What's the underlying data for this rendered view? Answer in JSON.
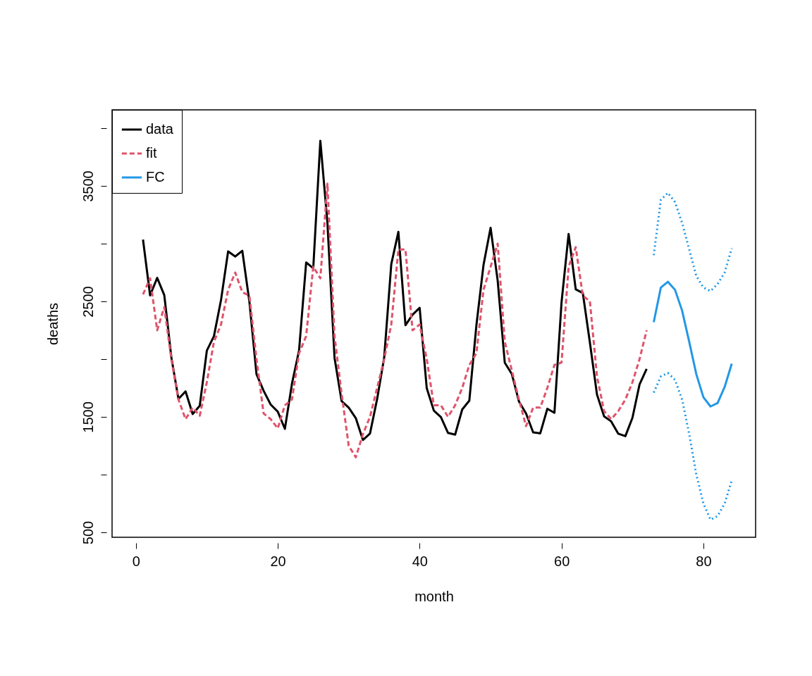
{
  "chart_data": {
    "type": "line",
    "xlabel": "month",
    "ylabel": "deaths",
    "xlim": [
      -3.36,
      87.36
    ],
    "ylim": [
      457,
      4159
    ],
    "xticks": [
      0,
      20,
      40,
      60,
      80
    ],
    "yticks": [
      500,
      {
        "value": 1000,
        "label": null
      },
      1500,
      {
        "value": 2000,
        "label": null
      },
      2500,
      {
        "value": 3000,
        "label": null
      },
      3500,
      {
        "value": 4000,
        "label": null
      }
    ],
    "grid": false,
    "legend": "top left",
    "series": [
      {
        "name": "data",
        "color": "#000000",
        "line_style": "solid",
        "x": [
          1,
          2,
          3,
          4,
          5,
          6,
          7,
          8,
          9,
          10,
          11,
          12,
          13,
          14,
          15,
          16,
          17,
          18,
          19,
          20,
          21,
          22,
          23,
          24,
          25,
          26,
          27,
          28,
          29,
          30,
          31,
          32,
          33,
          34,
          35,
          36,
          37,
          38,
          39,
          40,
          41,
          42,
          43,
          44,
          45,
          46,
          47,
          48,
          49,
          50,
          51,
          52,
          53,
          54,
          55,
          56,
          57,
          58,
          59,
          60,
          61,
          62,
          63,
          64,
          65,
          66,
          67,
          68,
          69,
          70,
          71,
          72
        ],
        "values": [
          3035,
          2552,
          2704,
          2554,
          2014,
          1655,
          1721,
          1524,
          1596,
          2074,
          2199,
          2512,
          2933,
          2889,
          2938,
          2497,
          1870,
          1726,
          1607,
          1545,
          1396,
          1787,
          2076,
          2837,
          2787,
          3891,
          3179,
          2011,
          1636,
          1580,
          1489,
          1300,
          1356,
          1653,
          2013,
          2823,
          3102,
          2294,
          2385,
          2444,
          1748,
          1554,
          1498,
          1361,
          1346,
          1564,
          1640,
          2293,
          2815,
          3137,
          2679,
          1969,
          1870,
          1633,
          1529,
          1366,
          1357,
          1570,
          1535,
          2491,
          3084,
          2605,
          2573,
          2143,
          1693,
          1504,
          1461,
          1354,
          1333,
          1492,
          1781,
          1915
        ]
      },
      {
        "name": "fit",
        "color": "#df536b",
        "line_style": "dashed",
        "x": [
          1,
          2,
          3,
          4,
          5,
          6,
          7,
          8,
          9,
          10,
          11,
          12,
          13,
          14,
          15,
          16,
          17,
          18,
          19,
          20,
          21,
          22,
          23,
          24,
          25,
          26,
          27,
          28,
          29,
          30,
          31,
          32,
          33,
          34,
          35,
          36,
          37,
          38,
          39,
          40,
          41,
          42,
          43,
          44,
          45,
          46,
          47,
          48,
          49,
          50,
          51,
          52,
          53,
          54,
          55,
          56,
          57,
          58,
          59,
          60,
          61,
          62,
          63,
          64,
          65,
          66,
          67,
          68,
          69,
          70,
          71,
          72
        ],
        "values": [
          2560,
          2700,
          2250,
          2450,
          2000,
          1650,
          1480,
          1580,
          1510,
          1800,
          2150,
          2300,
          2600,
          2750,
          2580,
          2550,
          2000,
          1530,
          1480,
          1400,
          1600,
          1650,
          2050,
          2200,
          2800,
          2700,
          3520,
          2200,
          1700,
          1250,
          1150,
          1350,
          1500,
          1750,
          2000,
          2300,
          2950,
          2950,
          2250,
          2300,
          2000,
          1600,
          1600,
          1500,
          1600,
          1750,
          1950,
          2050,
          2600,
          2800,
          3000,
          2150,
          1900,
          1650,
          1420,
          1580,
          1580,
          1750,
          1950,
          1970,
          2800,
          2970,
          2550,
          2500,
          1850,
          1550,
          1480,
          1550,
          1650,
          1800,
          2000,
          2250
        ]
      },
      {
        "name": "FC",
        "color": "#2297e6",
        "line_style": "solid",
        "x": [
          73,
          74,
          75,
          76,
          77,
          78,
          79,
          80,
          81,
          82,
          83,
          84
        ],
        "values": [
          2320,
          2620,
          2670,
          2600,
          2420,
          2150,
          1870,
          1670,
          1590,
          1620,
          1760,
          1960
        ]
      },
      {
        "color": "#2297e6",
        "line_style": "dotted",
        "x": [
          73,
          74,
          75,
          76,
          77,
          78,
          79,
          80,
          81,
          82,
          83,
          84
        ],
        "values": [
          2900,
          3380,
          3440,
          3360,
          3180,
          2950,
          2720,
          2620,
          2590,
          2650,
          2750,
          2960
        ]
      },
      {
        "color": "#2297e6",
        "line_style": "dotted",
        "x": [
          73,
          74,
          75,
          76,
          77,
          78,
          79,
          80,
          81,
          82,
          83,
          84
        ],
        "values": [
          1710,
          1850,
          1880,
          1820,
          1650,
          1350,
          1000,
          750,
          610,
          640,
          750,
          950
        ]
      }
    ]
  }
}
